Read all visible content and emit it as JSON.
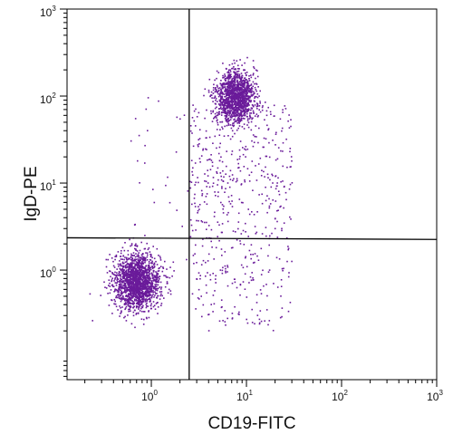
{
  "chart_data": {
    "type": "scatter",
    "title": "",
    "xlabel": "CD19-FITC",
    "ylabel": "IgD-PE",
    "x_scale": "log",
    "y_scale": "log",
    "xlim": [
      0.13,
      1000
    ],
    "ylim": [
      0.055,
      1000
    ],
    "x_ticks": [
      {
        "value": 1,
        "base": "10",
        "exp": "0"
      },
      {
        "value": 10,
        "base": "10",
        "exp": "1"
      },
      {
        "value": 100,
        "base": "10",
        "exp": "2"
      },
      {
        "value": 1000,
        "base": "10",
        "exp": "3"
      }
    ],
    "y_ticks": [
      {
        "value": 1,
        "base": "10",
        "exp": "0"
      },
      {
        "value": 10,
        "base": "10",
        "exp": "1"
      },
      {
        "value": 100,
        "base": "10",
        "exp": "2"
      },
      {
        "value": 1000,
        "base": "10",
        "exp": "3"
      }
    ],
    "quadrant_gate": {
      "x": 2.5,
      "y_left": 2.35,
      "y_right": 2.25
    },
    "point_color": "#6a1b9a",
    "grid": false,
    "populations": [
      {
        "name": "",
        "center": [
          0.7,
          0.75
        ],
        "spread_log": [
          0.12,
          0.16
        ],
        "approx_events": 1800
      },
      {
        "name": "",
        "center": [
          7.5,
          100
        ],
        "spread_log": [
          0.1,
          0.15
        ],
        "approx_events": 1400
      },
      {
        "name": "",
        "x_range": [
          2.5,
          30
        ],
        "y_range": [
          0.2,
          80
        ],
        "approx_events": 550
      },
      {
        "name": "",
        "x_range": [
          0.6,
          2.4
        ],
        "y_range": [
          1.2,
          120
        ],
        "approx_events": 30
      }
    ]
  }
}
